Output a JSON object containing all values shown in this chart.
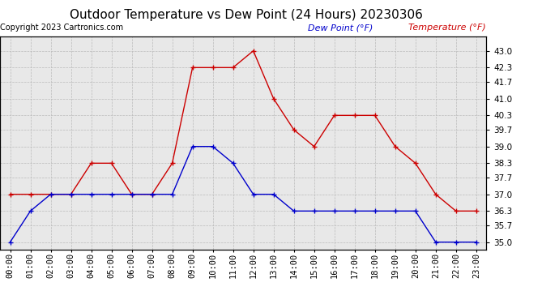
{
  "title": "Outdoor Temperature vs Dew Point (24 Hours) 20230306",
  "copyright": "Copyright 2023 Cartronics.com",
  "legend_dew": "Dew Point (°F)",
  "legend_temp": "Temperature (°F)",
  "hours": [
    "00:00",
    "01:00",
    "02:00",
    "03:00",
    "04:00",
    "05:00",
    "06:00",
    "07:00",
    "08:00",
    "09:00",
    "10:00",
    "11:00",
    "12:00",
    "13:00",
    "14:00",
    "15:00",
    "16:00",
    "17:00",
    "18:00",
    "19:00",
    "20:00",
    "21:00",
    "22:00",
    "23:00"
  ],
  "temperature": [
    37.0,
    37.0,
    37.0,
    37.0,
    38.3,
    38.3,
    37.0,
    37.0,
    38.3,
    42.3,
    42.3,
    42.3,
    43.0,
    41.0,
    39.7,
    39.0,
    40.3,
    40.3,
    40.3,
    39.0,
    38.3,
    37.0,
    36.3,
    36.3
  ],
  "dew_point": [
    35.0,
    36.3,
    37.0,
    37.0,
    37.0,
    37.0,
    37.0,
    37.0,
    37.0,
    39.0,
    39.0,
    38.3,
    37.0,
    37.0,
    36.3,
    36.3,
    36.3,
    36.3,
    36.3,
    36.3,
    36.3,
    35.0,
    35.0,
    35.0
  ],
  "ylim_min": 34.7,
  "ylim_max": 43.6,
  "yticks": [
    35.0,
    35.7,
    36.3,
    37.0,
    37.7,
    38.3,
    39.0,
    39.7,
    40.3,
    41.0,
    41.7,
    42.3,
    43.0
  ],
  "temp_color": "#cc0000",
  "dew_color": "#0000cc",
  "bg_color": "#ffffff",
  "plot_bg_color": "#e8e8e8",
  "grid_color": "#bbbbbb",
  "title_fontsize": 11,
  "copyright_fontsize": 7,
  "legend_fontsize": 8,
  "tick_fontsize": 7.5
}
